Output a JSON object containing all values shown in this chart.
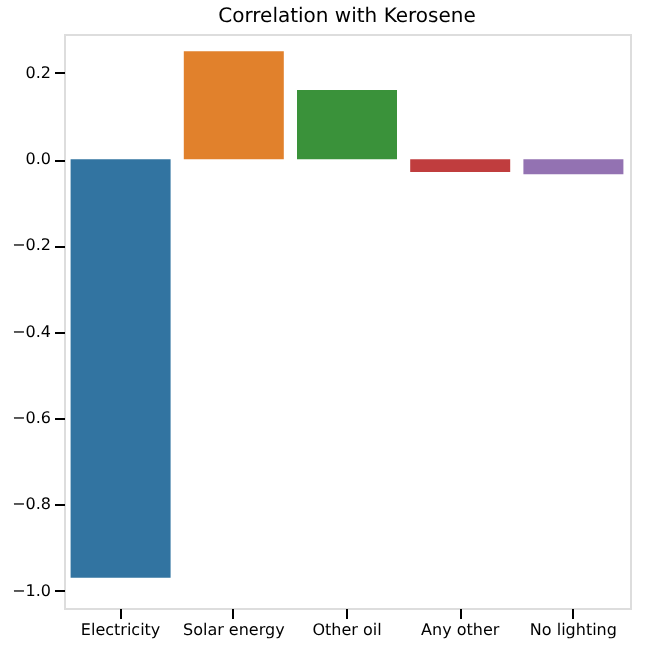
{
  "chart_data": {
    "type": "bar",
    "title": "Correlation with Kerosene",
    "categories": [
      "Electricity",
      "Solar energy",
      "Other oil",
      "Any other",
      "No lighting"
    ],
    "values": [
      -0.97,
      0.25,
      0.16,
      -0.03,
      -0.035
    ],
    "colors": [
      "#3274a1",
      "#e1812c",
      "#3a923a",
      "#c03d3e",
      "#9372b2"
    ],
    "ylim": [
      -1.04,
      0.29
    ],
    "yticks": [
      {
        "value": -1.0,
        "label": "−1.0"
      },
      {
        "value": -0.8,
        "label": "−0.8"
      },
      {
        "value": -0.6,
        "label": "−0.6"
      },
      {
        "value": -0.4,
        "label": "−0.4"
      },
      {
        "value": -0.2,
        "label": "−0.2"
      },
      {
        "value": 0.0,
        "label": "0.0"
      },
      {
        "value": 0.2,
        "label": "0.2"
      }
    ],
    "grid": false
  }
}
